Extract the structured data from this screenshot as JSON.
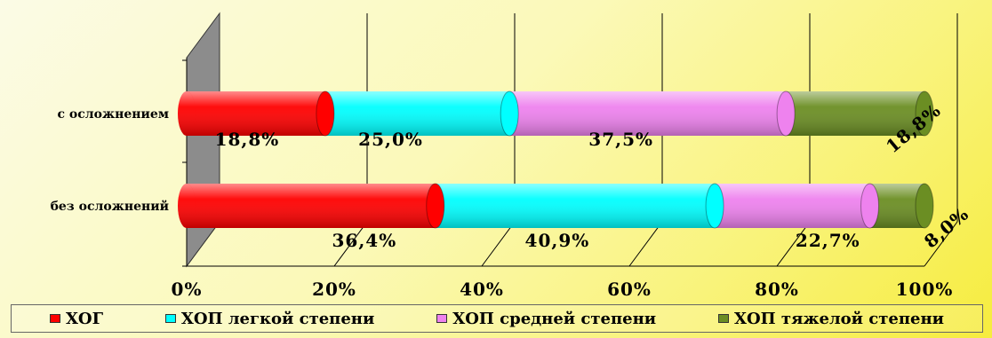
{
  "chart_data": {
    "type": "bar",
    "orientation": "horizontal",
    "stacked": "percent",
    "style": "3d-cylinder",
    "categories": [
      "с осложнением",
      "без осложнений"
    ],
    "series": [
      {
        "name": "ХОГ",
        "color": "#ff0000",
        "values": [
          18.8,
          36.4
        ],
        "labels": [
          "18,8%",
          "36,4%"
        ]
      },
      {
        "name": "ХОП легкой степени",
        "color": "#00ffff",
        "values": [
          25.0,
          40.9
        ],
        "labels": [
          "25,0%",
          "40,9%"
        ]
      },
      {
        "name": "ХОП средней степени",
        "color": "#ee82ee",
        "values": [
          37.5,
          22.7
        ],
        "labels": [
          "37,5%",
          "22,7%"
        ]
      },
      {
        "name": "ХОП тяжелой степени",
        "color": "#6b8e23",
        "values": [
          18.8,
          8.0
        ],
        "labels": [
          "18,8%",
          "8,0%"
        ]
      }
    ],
    "xticks": [
      "0%",
      "20%",
      "40%",
      "60%",
      "80%",
      "100%"
    ],
    "xlim": [
      0,
      100
    ],
    "grid": true,
    "legend_position": "bottom"
  }
}
